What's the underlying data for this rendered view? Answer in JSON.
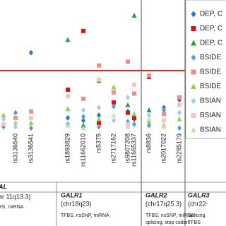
{
  "chart_data": {
    "type": "strip",
    "categories": [
      null,
      "rs3136540",
      "rs3136541",
      "rs1893829",
      "rs11662010",
      "rs5375",
      "rs2717162",
      "rs9807208",
      "rs11665337",
      "rs8836",
      "rs2017022",
      "rs2285179"
    ],
    "ylim": [
      0,
      10
    ],
    "threshold": 4.7,
    "threshold_color": "#e02020",
    "legend": "top-right",
    "series": [
      {
        "name": "DEP, C",
        "marker": "diamond",
        "color": "#2e75b6",
        "values": [
          null,
          0.6,
          6.1,
          1.0,
          0.8,
          1.2,
          null,
          1.5,
          0.9,
          null,
          1.8,
          2.4
        ]
      },
      {
        "name": "DEP, C",
        "marker": "square",
        "color": "#e01010",
        "values": [
          null,
          null,
          null,
          3.2,
          7.8,
          0.6,
          2.2,
          1.4,
          1.0,
          4.2,
          null,
          null
        ]
      },
      {
        "name": "DEP, C",
        "marker": "triangle",
        "color": "#20a040",
        "values": [
          null,
          null,
          null,
          7.1,
          0.4,
          3.9,
          null,
          2.0,
          9.0,
          1.6,
          null,
          null
        ]
      },
      {
        "name": "BSIDE",
        "marker": "diamond",
        "color": "#5b9bd5",
        "values": [
          0.3,
          1.4,
          0.2,
          0.5,
          1.1,
          0.3,
          1.9,
          0.7,
          0.5,
          0.4,
          1.6,
          0.2
        ]
      },
      {
        "name": "BSIDE",
        "marker": "square",
        "color": "#f08c8c",
        "values": [
          null,
          1.0,
          1.5,
          null,
          2.5,
          5.1,
          3.0,
          5.4,
          2.9,
          4.3,
          1.3,
          2.6
        ]
      },
      {
        "name": "BSIDE",
        "marker": "triangle",
        "color": "#92d050",
        "values": [
          1.2,
          null,
          0.6,
          1.7,
          null,
          0.9,
          3.4,
          null,
          1.3,
          0.7,
          0.4,
          0.9
        ]
      },
      {
        "name": "BSIAN",
        "marker": "diamond",
        "color": "#a9c8e8",
        "values": [
          0.9,
          0.3,
          null,
          null,
          1.6,
          1.8,
          0.8,
          2.6,
          null,
          1.2,
          null,
          1.4
        ]
      },
      {
        "name": "BSIAN",
        "marker": "square",
        "color": "#f7c4c4",
        "values": [
          0.5,
          null,
          1.0,
          2.7,
          null,
          4.0,
          null,
          0.5,
          3.6,
          null,
          0.8,
          2.0
        ]
      },
      {
        "name": "BSIAN",
        "marker": "triangle",
        "color": "#c5e0b4",
        "values": [
          null,
          0.7,
          null,
          0.4,
          0.2,
          null,
          1.2,
          0.3,
          null,
          0.9,
          0.3,
          null
        ]
      }
    ],
    "genes": [
      {
        "name": "AL",
        "location": "ar 11q13.3)",
        "features": [
          "BS, miRNA"
        ]
      },
      {
        "name": "GALR1",
        "location": "(chr18q23)",
        "features": [
          "TFBS, nsSNP, miRNA"
        ]
      },
      {
        "name": "GALR2",
        "location": "(chr17q25.3)",
        "features": [
          "TFBS, nsSNP, miRNA",
          "splicing, stop codon"
        ]
      },
      {
        "name": "GALR3",
        "location": "(chr22-",
        "features": [
          "Splicing",
          "TFBS"
        ]
      }
    ]
  }
}
